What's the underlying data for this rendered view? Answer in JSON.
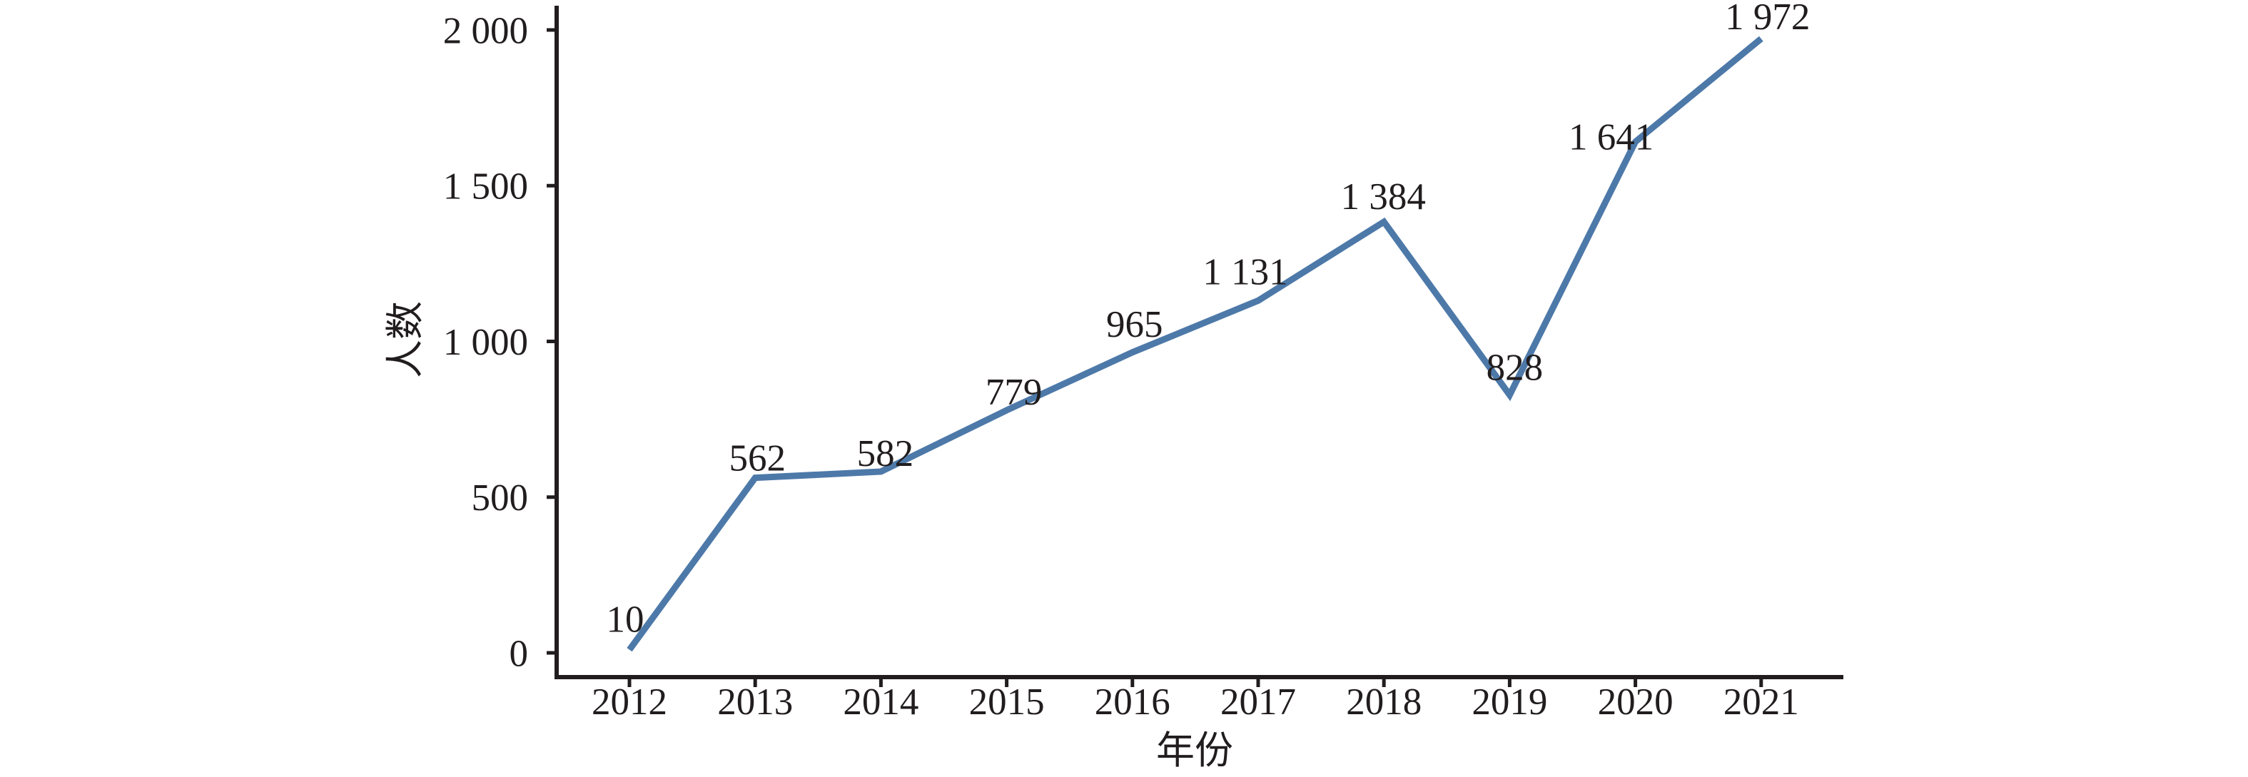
{
  "figure": {
    "background": "#ffffff"
  },
  "chart_data": {
    "type": "line",
    "title": "",
    "xlabel": "年份",
    "ylabel": "人数",
    "categories": [
      "2012",
      "2013",
      "2014",
      "2015",
      "2016",
      "2017",
      "2018",
      "2019",
      "2020",
      "2021"
    ],
    "series": [
      {
        "name": "人数",
        "values": [
          10,
          562,
          582,
          779,
          965,
          1131,
          1384,
          828,
          1641,
          1972
        ]
      }
    ],
    "point_labels": [
      "10",
      "562",
      "582",
      "779",
      "965",
      "1 131",
      "1 384",
      "828",
      "1 641",
      "1 972"
    ],
    "y_ticks": [
      0,
      500,
      1000,
      1500,
      2000
    ],
    "y_tick_labels": [
      "0",
      "500",
      "1 000",
      "1 500",
      "2 000"
    ],
    "ylim": [
      0,
      2000
    ],
    "grid": false,
    "legend_position": "none",
    "line_color": "#4d79a9",
    "axis_color": "#211d1e"
  }
}
